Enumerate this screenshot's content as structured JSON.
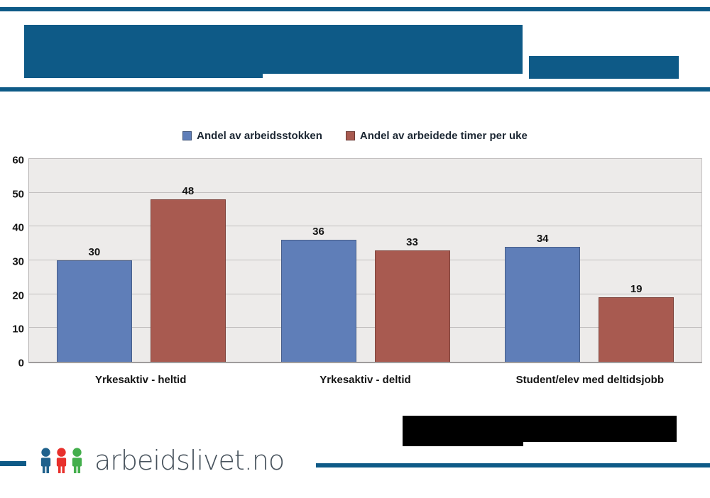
{
  "colors": {
    "header_blue": "#0e5a87",
    "plot_bg": "#edebea",
    "gridline": "#c2bfbf",
    "axis_text": "#141414",
    "redaction_black": "#000000",
    "logo_text": "#47525c",
    "logo_person_blue": "#1f618c",
    "logo_person_red": "#e8302c",
    "logo_person_green": "#43ae4c"
  },
  "chart_data": {
    "type": "bar",
    "title": "",
    "categories": [
      "Yrkesaktiv - heltid",
      "Yrkesaktiv - deltid",
      "Student/elev med deltidsjobb"
    ],
    "series": [
      {
        "name": "Andel av arbeidsstokken",
        "color": "#5f7eb8",
        "values": [
          30,
          36,
          34
        ]
      },
      {
        "name": "Andel av arbeidede timer per uke",
        "color": "#a85a50",
        "values": [
          48,
          33,
          19
        ]
      }
    ],
    "ylim": [
      0,
      60
    ],
    "yticks": [
      0,
      10,
      20,
      30,
      40,
      50,
      60
    ],
    "grid": true,
    "legend_position": "top",
    "value_labels": true,
    "xlabel": "",
    "ylabel": ""
  },
  "footer": {
    "logo_text": "arbeidslivet.no"
  }
}
